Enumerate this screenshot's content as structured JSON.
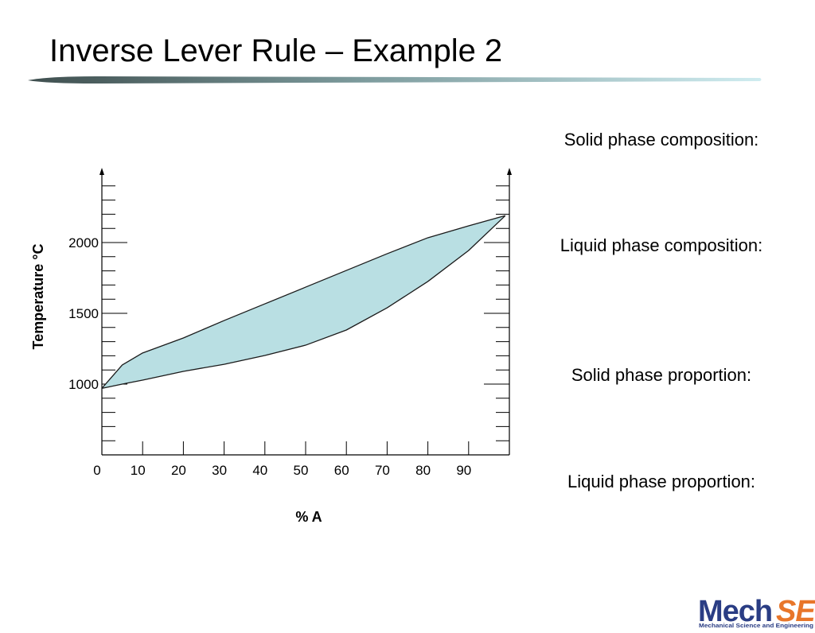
{
  "title": "Inverse Lever Rule – Example 2",
  "chart_data": {
    "type": "line",
    "x": [
      0,
      5,
      10,
      20,
      30,
      40,
      50,
      60,
      70,
      80,
      90,
      99
    ],
    "series": [
      {
        "color": "#1a1a1a",
        "values": [
          970,
          1135,
          1220,
          1326,
          1449,
          1567,
          1685,
          1803,
          1921,
          2034,
          2118,
          2190
        ]
      },
      {
        "color": "#1a1a1a",
        "values": [
          970,
          1000,
          1028,
          1090,
          1140,
          1202,
          1275,
          1382,
          1539,
          1725,
          1944,
          2190
        ]
      }
    ],
    "fill_between": "#b9dfe3",
    "xlim": [
      0,
      100
    ],
    "xticks": [
      0,
      10,
      20,
      30,
      40,
      50,
      60,
      70,
      80,
      90
    ],
    "ylim": [
      500,
      2500
    ],
    "yticks": [
      1000,
      1500,
      2000
    ],
    "y_minor_ticks": [
      600,
      700,
      800,
      900,
      1100,
      1200,
      1300,
      1400,
      1600,
      1700,
      1800,
      1900,
      2100,
      2200,
      2300,
      2400
    ],
    "xlabel": "% A",
    "ylabel": "Temperature °C"
  },
  "questions": [
    "Solid phase composition:",
    "Liquid phase composition:",
    "Solid phase proportion:",
    "Liquid phase proportion:"
  ],
  "logo": {
    "name": "Mech",
    "highlight": "SE",
    "subtitle": "Mechanical Science and Engineering"
  }
}
